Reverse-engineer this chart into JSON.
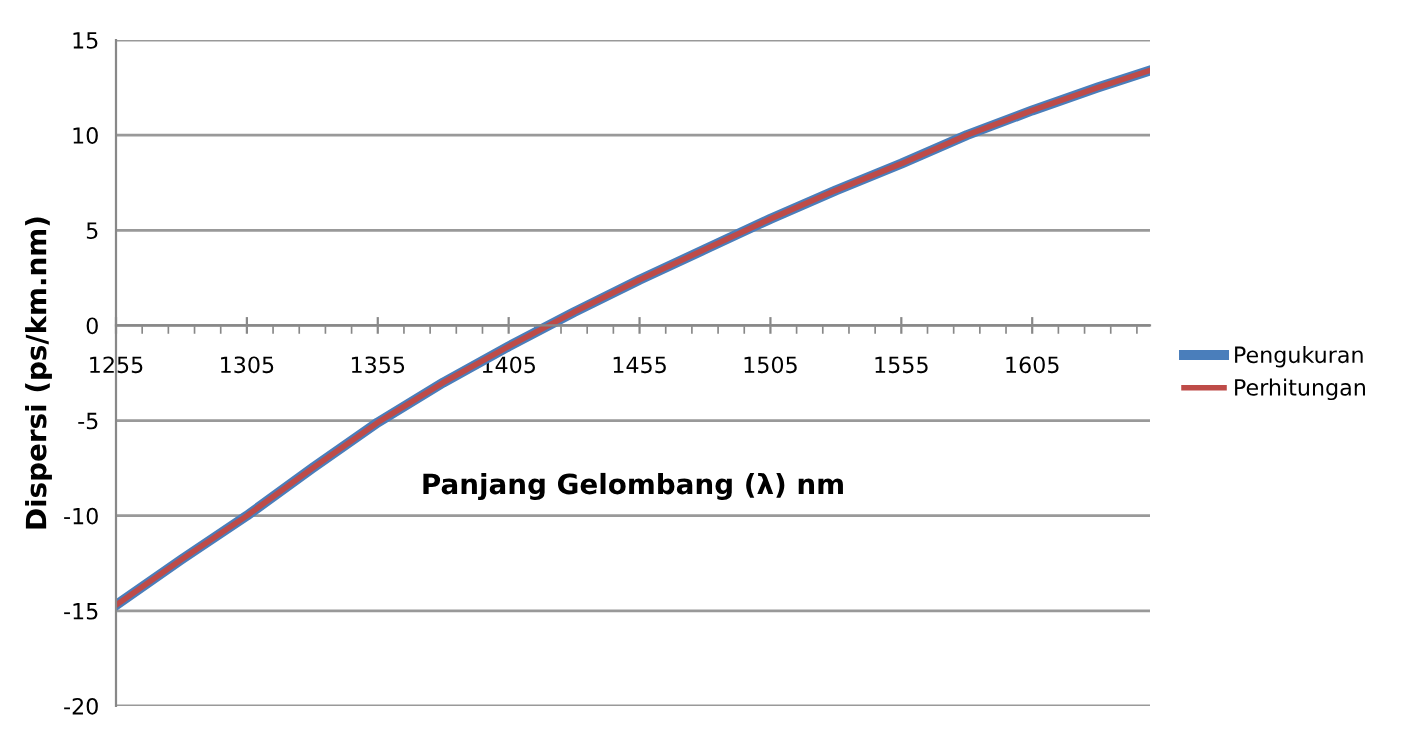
{
  "chart_data": {
    "type": "line",
    "xlabel": "Panjang Gelombang (λ) nm",
    "ylabel": "Dispersi (ps/km.nm)",
    "x": [
      1255,
      1280,
      1305,
      1330,
      1355,
      1380,
      1405,
      1430,
      1455,
      1480,
      1505,
      1530,
      1555,
      1580,
      1605,
      1630,
      1650
    ],
    "series": [
      {
        "name": "Pengukuran",
        "color": "#4a7ebb",
        "values": [
          -14.7,
          -12.3,
          -10.0,
          -7.5,
          -5.1,
          -3.0,
          -1.1,
          0.7,
          2.4,
          4.0,
          5.6,
          7.1,
          8.5,
          10.0,
          11.3,
          12.5,
          13.4
        ]
      },
      {
        "name": "Perhitungan",
        "color": "#be4b48",
        "values": [
          -14.7,
          -12.3,
          -10.0,
          -7.5,
          -5.1,
          -3.0,
          -1.1,
          0.7,
          2.4,
          4.0,
          5.6,
          7.1,
          8.5,
          10.0,
          11.3,
          12.5,
          13.4
        ]
      }
    ],
    "xlim": [
      1255,
      1650
    ],
    "xticks": [
      1255,
      1305,
      1355,
      1405,
      1455,
      1505,
      1555,
      1605
    ],
    "ylim": [
      -20,
      15
    ],
    "yticks": [
      -20,
      -15,
      -10,
      -5,
      0,
      5,
      10,
      15
    ],
    "grid": "y",
    "legend": "right",
    "marker": "none",
    "line_style": "solid"
  }
}
